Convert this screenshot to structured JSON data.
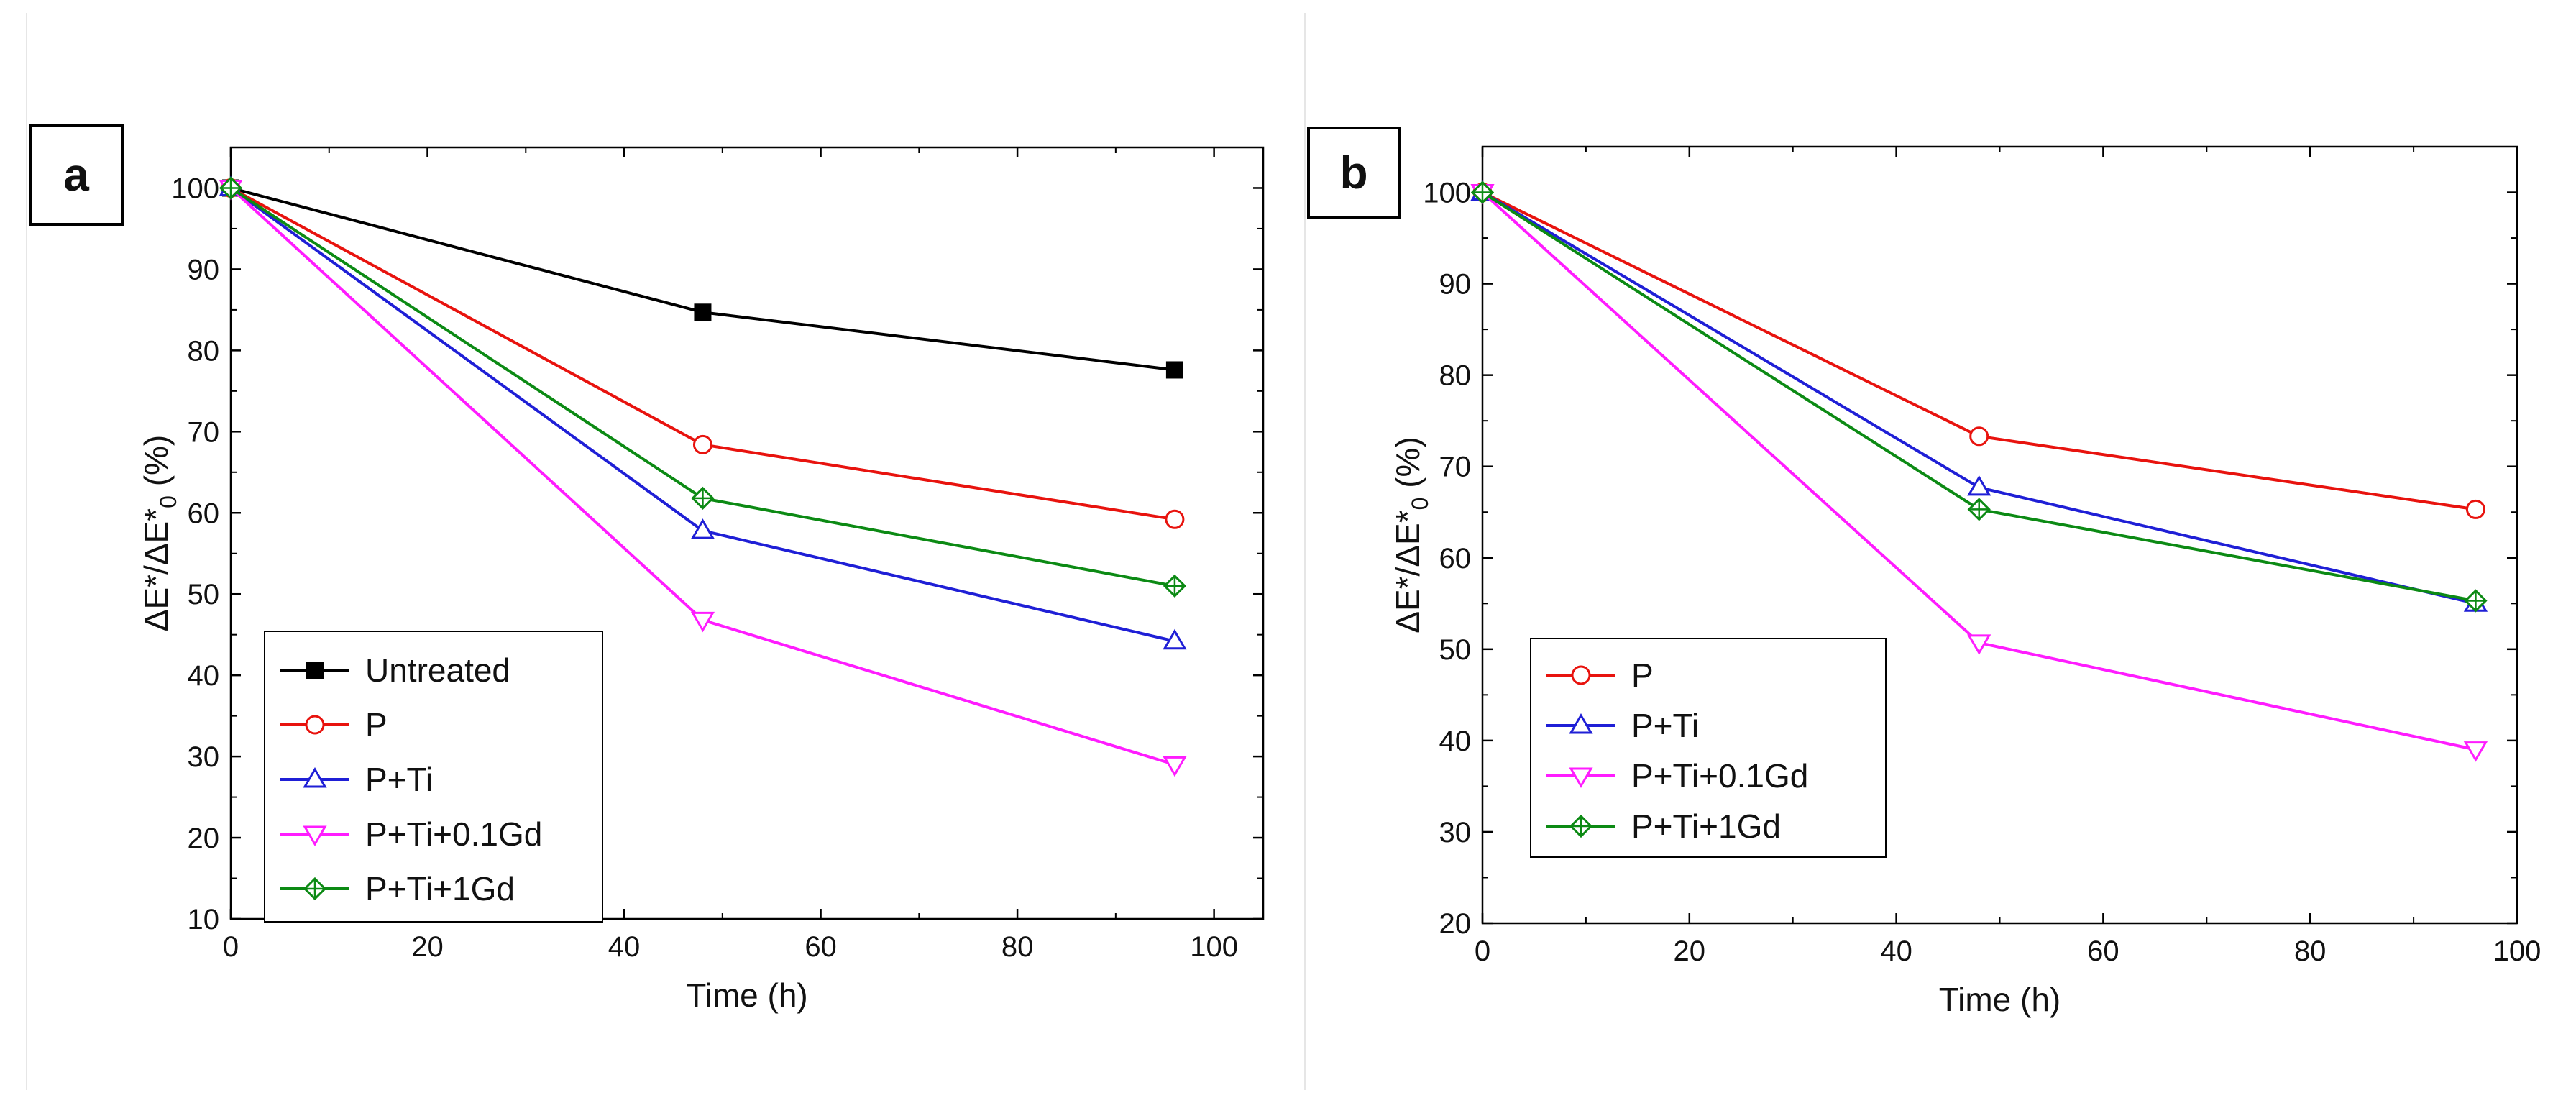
{
  "chart_data": [
    {
      "type": "line",
      "panel_label": "a",
      "xlabel": "Time (h)",
      "ylabel": {
        "base": "ΔE*/ΔE*",
        "subscript": "0",
        "suffix": " (%)"
      },
      "xlim": [
        0,
        105
      ],
      "ylim": [
        10,
        105
      ],
      "xticks": [
        0,
        20,
        40,
        60,
        80,
        100
      ],
      "yticks": [
        10,
        20,
        30,
        40,
        50,
        60,
        70,
        80,
        90,
        100
      ],
      "legend_position": "bottom-left",
      "x": [
        0,
        48,
        96
      ],
      "series": [
        {
          "name": "Untreated",
          "color": "#000000",
          "marker": "square-filled",
          "values": [
            100,
            84.7,
            77.6
          ]
        },
        {
          "name": "P",
          "color": "#e8130e",
          "marker": "circle",
          "values": [
            100,
            68.4,
            59.2
          ]
        },
        {
          "name": "P+Ti",
          "color": "#1f1fd6",
          "marker": "triangle-up",
          "values": [
            100,
            57.8,
            44.2
          ]
        },
        {
          "name": "P+Ti+0.1Gd",
          "color": "#ff1cff",
          "marker": "triangle-down",
          "values": [
            100,
            46.8,
            29.0
          ]
        },
        {
          "name": "P+Ti+1Gd",
          "color": "#0c8a14",
          "marker": "diamond-plus",
          "values": [
            100,
            61.8,
            51.0
          ]
        }
      ]
    },
    {
      "type": "line",
      "panel_label": "b",
      "xlabel": "Time (h)",
      "ylabel": {
        "base": "ΔE*/ΔE*",
        "subscript": "0",
        "suffix": " (%)"
      },
      "xlim": [
        0,
        100
      ],
      "ylim": [
        20,
        105
      ],
      "xticks": [
        0,
        20,
        40,
        60,
        80,
        100
      ],
      "yticks": [
        20,
        30,
        40,
        50,
        60,
        70,
        80,
        90,
        100
      ],
      "legend_position": "bottom-left",
      "x": [
        0,
        48,
        96
      ],
      "series": [
        {
          "name": "P",
          "color": "#e8130e",
          "marker": "circle",
          "values": [
            100,
            73.3,
            65.3
          ]
        },
        {
          "name": "P+Ti",
          "color": "#1f1fd6",
          "marker": "triangle-up",
          "values": [
            100,
            67.7,
            55.0
          ]
        },
        {
          "name": "P+Ti+0.1Gd",
          "color": "#ff1cff",
          "marker": "triangle-down",
          "values": [
            100,
            50.7,
            39.0
          ]
        },
        {
          "name": "P+Ti+1Gd",
          "color": "#0c8a14",
          "marker": "diamond-plus",
          "values": [
            100,
            65.3,
            55.3
          ]
        }
      ]
    }
  ]
}
